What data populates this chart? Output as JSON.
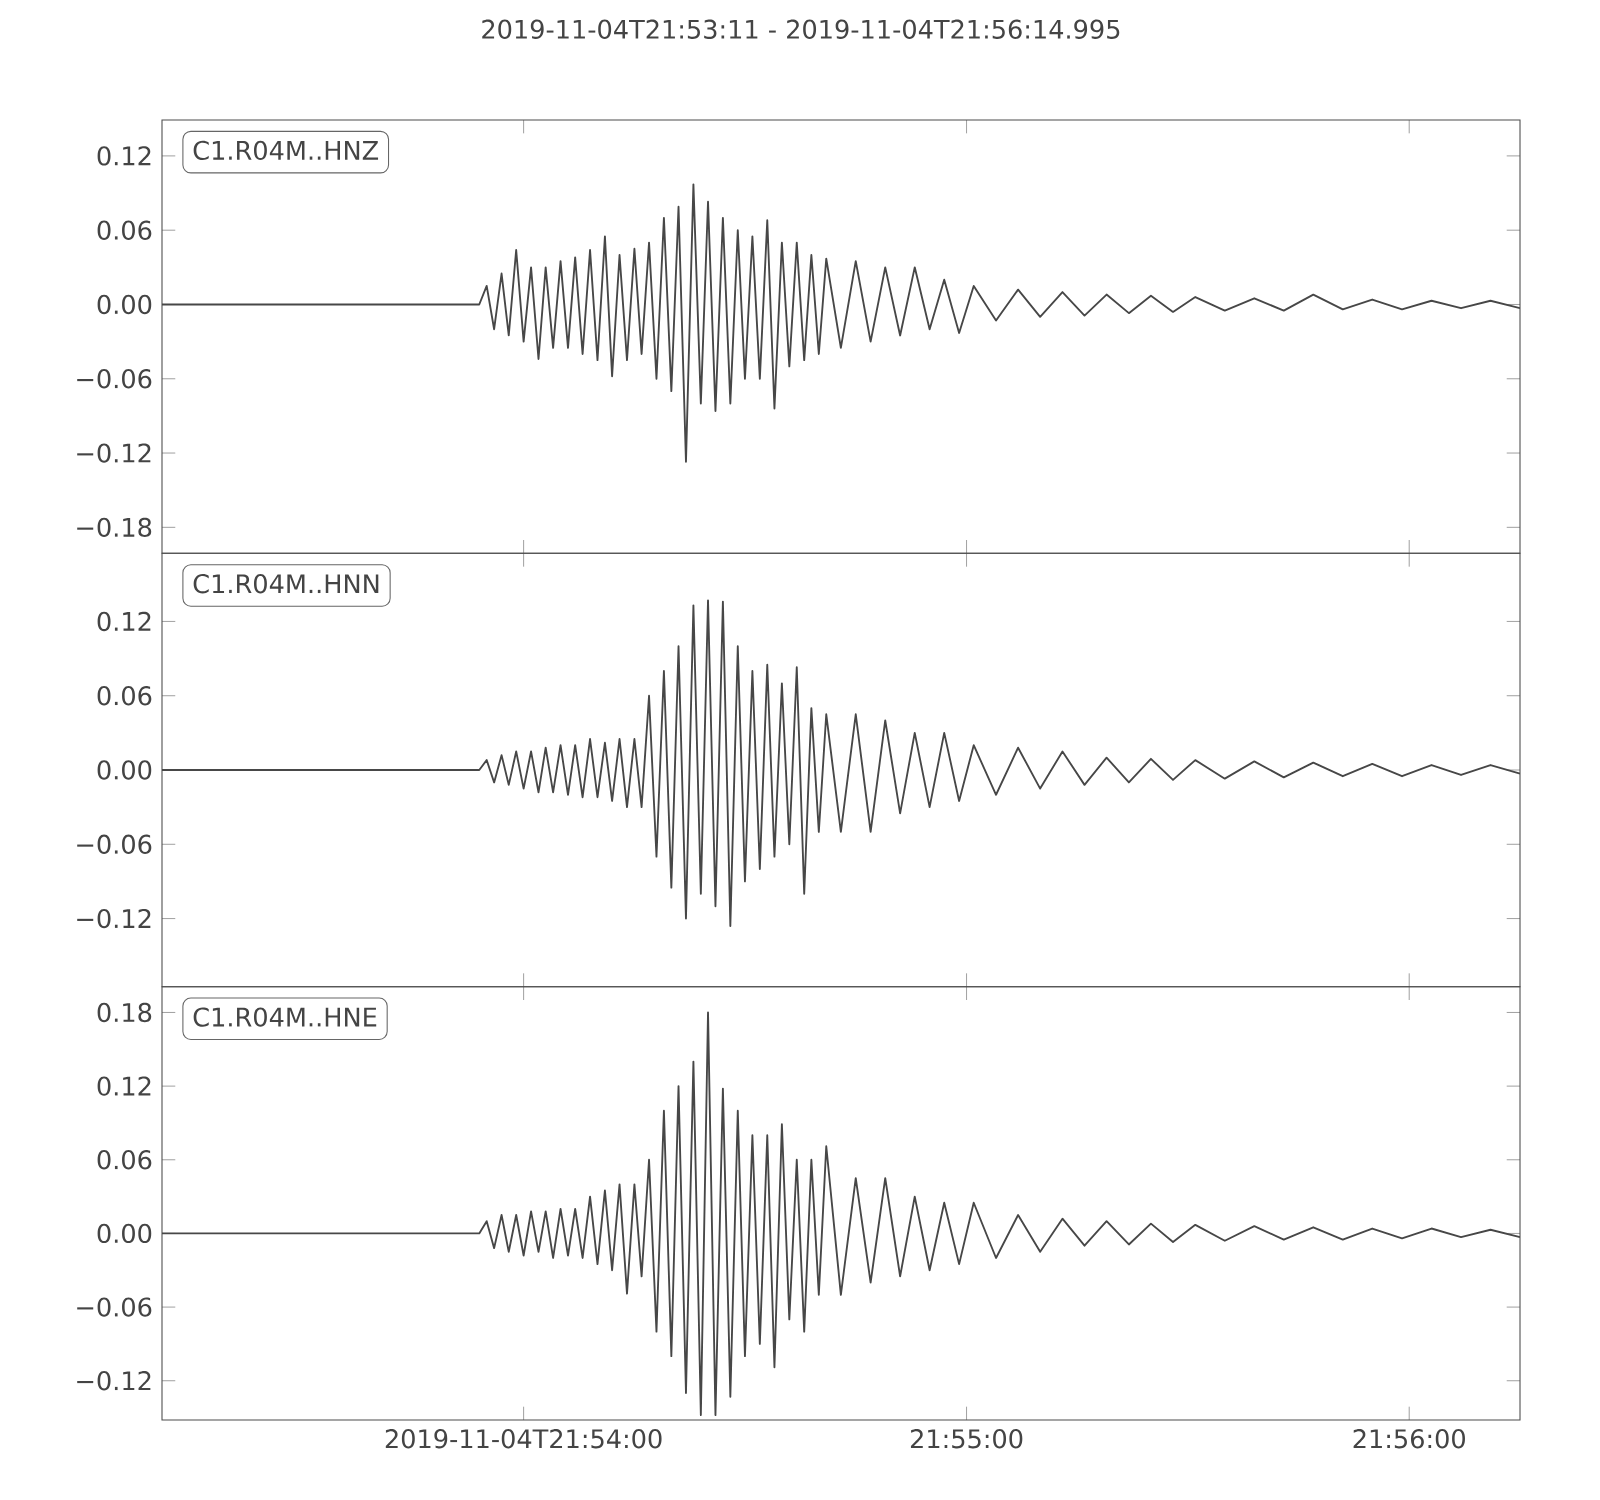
{
  "chart_data": [
    {
      "type": "line",
      "title": "2019-11-04T21:53:11  -  2019-11-04T21:56:14.995",
      "legend": "top left",
      "tick_labels": "y",
      "xlim": [
        21.88639,
        21.9375
      ],
      "ylim": [
        -0.201,
        0.149
      ],
      "xticks": [
        {
          "value": 21.9,
          "label": null
        },
        {
          "value": 21.91667,
          "label": null
        },
        {
          "value": 21.93333,
          "label": null
        }
      ],
      "yticks": [
        0.12,
        0.06,
        {
          "value": 0,
          "label": "0.00"
        },
        {
          "value": -0.06,
          "label": "−0.06"
        },
        {
          "value": -0.12,
          "label": "−0.12"
        },
        {
          "value": -0.18,
          "label": "−0.18"
        }
      ],
      "series": [
        {
          "name": "C1.R04M..HNZ",
          "color": "#474747",
          "x": [
            21.88639,
            21.89833,
            21.89861,
            21.89889,
            21.89917,
            21.89944,
            21.89972,
            21.9,
            21.90028,
            21.90056,
            21.90083,
            21.90111,
            21.90139,
            21.90167,
            21.90194,
            21.90222,
            21.9025,
            21.90278,
            21.90306,
            21.90333,
            21.90361,
            21.90389,
            21.90417,
            21.90444,
            21.90472,
            21.905,
            21.90528,
            21.90556,
            21.90583,
            21.90611,
            21.90639,
            21.90667,
            21.90694,
            21.90722,
            21.9075,
            21.90778,
            21.90806,
            21.90833,
            21.90861,
            21.90889,
            21.90917,
            21.90944,
            21.90972,
            21.91,
            21.91028,
            21.91056,
            21.91083,
            21.91111,
            21.91139,
            21.91194,
            21.9125,
            21.91306,
            21.91361,
            21.91417,
            21.91472,
            21.91528,
            21.91583,
            21.91639,
            21.91694,
            21.91778,
            21.91861,
            21.91944,
            21.92028,
            21.92111,
            21.92194,
            21.92278,
            21.92361,
            21.92444,
            21.92528,
            21.92639,
            21.9275,
            21.92861,
            21.92972,
            21.93083,
            21.93194,
            21.93306,
            21.93417,
            21.93528,
            21.93639,
            21.9375
          ],
          "values": [
            0,
            0,
            0.015,
            -0.02,
            0.025,
            -0.025,
            0.044,
            -0.03,
            0.03,
            -0.044,
            0.03,
            -0.035,
            0.035,
            -0.035,
            0.038,
            -0.04,
            0.044,
            -0.045,
            0.055,
            -0.058,
            0.04,
            -0.045,
            0.045,
            -0.04,
            0.05,
            -0.06,
            0.07,
            -0.07,
            0.079,
            -0.127,
            0.097,
            -0.08,
            0.083,
            -0.086,
            0.07,
            -0.08,
            0.06,
            -0.06,
            0.055,
            -0.06,
            0.068,
            -0.084,
            0.05,
            -0.05,
            0.05,
            -0.045,
            0.04,
            -0.04,
            0.037,
            -0.035,
            0.035,
            -0.03,
            0.03,
            -0.025,
            0.03,
            -0.02,
            0.02,
            -0.023,
            0.015,
            -0.013,
            0.012,
            -0.01,
            0.01,
            -0.009,
            0.008,
            -0.007,
            0.007,
            -0.006,
            0.006,
            -0.005,
            0.005,
            -0.005,
            0.008,
            -0.004,
            0.004,
            -0.004,
            0.003,
            -0.003,
            0.003,
            -0.003
          ]
        }
      ]
    },
    {
      "type": "line",
      "legend": "top left",
      "tick_labels": "y",
      "xlim": [
        21.88639,
        21.9375
      ],
      "ylim": [
        -0.175,
        0.175
      ],
      "xticks": [
        {
          "value": 21.9,
          "label": null
        },
        {
          "value": 21.91667,
          "label": null
        },
        {
          "value": 21.93333,
          "label": null
        }
      ],
      "yticks": [
        0.12,
        0.06,
        {
          "value": 0,
          "label": "0.00"
        },
        {
          "value": -0.06,
          "label": "−0.06"
        },
        {
          "value": -0.12,
          "label": "−0.12"
        }
      ],
      "series": [
        {
          "name": "C1.R04M..HNN",
          "color": "#474747",
          "x": [
            21.88639,
            21.89833,
            21.89861,
            21.89889,
            21.89917,
            21.89944,
            21.89972,
            21.9,
            21.90028,
            21.90056,
            21.90083,
            21.90111,
            21.90139,
            21.90167,
            21.90194,
            21.90222,
            21.9025,
            21.90278,
            21.90306,
            21.90333,
            21.90361,
            21.90389,
            21.90417,
            21.90444,
            21.90472,
            21.905,
            21.90528,
            21.90556,
            21.90583,
            21.90611,
            21.90639,
            21.90667,
            21.90694,
            21.90722,
            21.9075,
            21.90778,
            21.90806,
            21.90833,
            21.90861,
            21.90889,
            21.90917,
            21.90944,
            21.90972,
            21.91,
            21.91028,
            21.91056,
            21.91083,
            21.91111,
            21.91139,
            21.91194,
            21.9125,
            21.91306,
            21.91361,
            21.91417,
            21.91472,
            21.91528,
            21.91583,
            21.91639,
            21.91694,
            21.91778,
            21.91861,
            21.91944,
            21.92028,
            21.92111,
            21.92194,
            21.92278,
            21.92361,
            21.92444,
            21.92528,
            21.92639,
            21.9275,
            21.92861,
            21.92972,
            21.93083,
            21.93194,
            21.93306,
            21.93417,
            21.93528,
            21.93639,
            21.9375
          ],
          "values": [
            0,
            0,
            0.008,
            -0.01,
            0.012,
            -0.012,
            0.015,
            -0.015,
            0.015,
            -0.018,
            0.018,
            -0.018,
            0.02,
            -0.02,
            0.02,
            -0.022,
            0.025,
            -0.022,
            0.022,
            -0.025,
            0.025,
            -0.03,
            0.025,
            -0.03,
            0.06,
            -0.07,
            0.08,
            -0.095,
            0.1,
            -0.12,
            0.133,
            -0.1,
            0.137,
            -0.11,
            0.136,
            -0.126,
            0.1,
            -0.09,
            0.08,
            -0.08,
            0.085,
            -0.07,
            0.07,
            -0.06,
            0.083,
            -0.1,
            0.05,
            -0.05,
            0.045,
            -0.05,
            0.045,
            -0.05,
            0.04,
            -0.035,
            0.03,
            -0.03,
            0.03,
            -0.025,
            0.02,
            -0.02,
            0.018,
            -0.015,
            0.015,
            -0.012,
            0.01,
            -0.01,
            0.009,
            -0.008,
            0.008,
            -0.007,
            0.007,
            -0.006,
            0.006,
            -0.005,
            0.005,
            -0.005,
            0.004,
            -0.004,
            0.004,
            -0.003
          ]
        }
      ]
    },
    {
      "type": "line",
      "legend": "top left",
      "xlim": [
        21.88639,
        21.9375
      ],
      "ylim": [
        -0.152,
        0.201
      ],
      "xticks": [
        {
          "value": 21.9,
          "label": "2019-11-04T21:54:00"
        },
        {
          "value": 21.91667,
          "label": "21:55:00"
        },
        {
          "value": 21.93333,
          "label": "21:56:00"
        }
      ],
      "yticks": [
        0.18,
        0.12,
        0.06,
        {
          "value": 0,
          "label": "0.00"
        },
        {
          "value": -0.06,
          "label": "−0.06"
        },
        {
          "value": -0.12,
          "label": "−0.12"
        }
      ],
      "series": [
        {
          "name": "C1.R04M..HNE",
          "color": "#474747",
          "x": [
            21.88639,
            21.89833,
            21.89861,
            21.89889,
            21.89917,
            21.89944,
            21.89972,
            21.9,
            21.90028,
            21.90056,
            21.90083,
            21.90111,
            21.90139,
            21.90167,
            21.90194,
            21.90222,
            21.9025,
            21.90278,
            21.90306,
            21.90333,
            21.90361,
            21.90389,
            21.90417,
            21.90444,
            21.90472,
            21.905,
            21.90528,
            21.90556,
            21.90583,
            21.90611,
            21.90639,
            21.90667,
            21.90694,
            21.90722,
            21.9075,
            21.90778,
            21.90806,
            21.90833,
            21.90861,
            21.90889,
            21.90917,
            21.90944,
            21.90972,
            21.91,
            21.91028,
            21.91056,
            21.91083,
            21.91111,
            21.91139,
            21.91194,
            21.9125,
            21.91306,
            21.91361,
            21.91417,
            21.91472,
            21.91528,
            21.91583,
            21.91639,
            21.91694,
            21.91778,
            21.91861,
            21.91944,
            21.92028,
            21.92111,
            21.92194,
            21.92278,
            21.92361,
            21.92444,
            21.92528,
            21.92639,
            21.9275,
            21.92861,
            21.92972,
            21.93083,
            21.93194,
            21.93306,
            21.93417,
            21.93528,
            21.93639,
            21.9375
          ],
          "values": [
            0,
            0,
            0.01,
            -0.012,
            0.015,
            -0.015,
            0.015,
            -0.018,
            0.018,
            -0.015,
            0.018,
            -0.02,
            0.02,
            -0.018,
            0.02,
            -0.02,
            0.03,
            -0.025,
            0.035,
            -0.03,
            0.04,
            -0.049,
            0.04,
            -0.035,
            0.06,
            -0.08,
            0.1,
            -0.1,
            0.12,
            -0.13,
            0.14,
            -0.148,
            0.18,
            -0.148,
            0.118,
            -0.133,
            0.1,
            -0.1,
            0.08,
            -0.09,
            0.08,
            -0.109,
            0.089,
            -0.07,
            0.06,
            -0.08,
            0.06,
            -0.05,
            0.071,
            -0.05,
            0.045,
            -0.04,
            0.045,
            -0.035,
            0.03,
            -0.03,
            0.025,
            -0.025,
            0.025,
            -0.02,
            0.015,
            -0.015,
            0.012,
            -0.01,
            0.01,
            -0.009,
            0.008,
            -0.007,
            0.007,
            -0.006,
            0.006,
            -0.005,
            0.005,
            -0.005,
            0.004,
            -0.004,
            0.004,
            -0.003,
            0.003,
            -0.003
          ]
        }
      ]
    }
  ]
}
